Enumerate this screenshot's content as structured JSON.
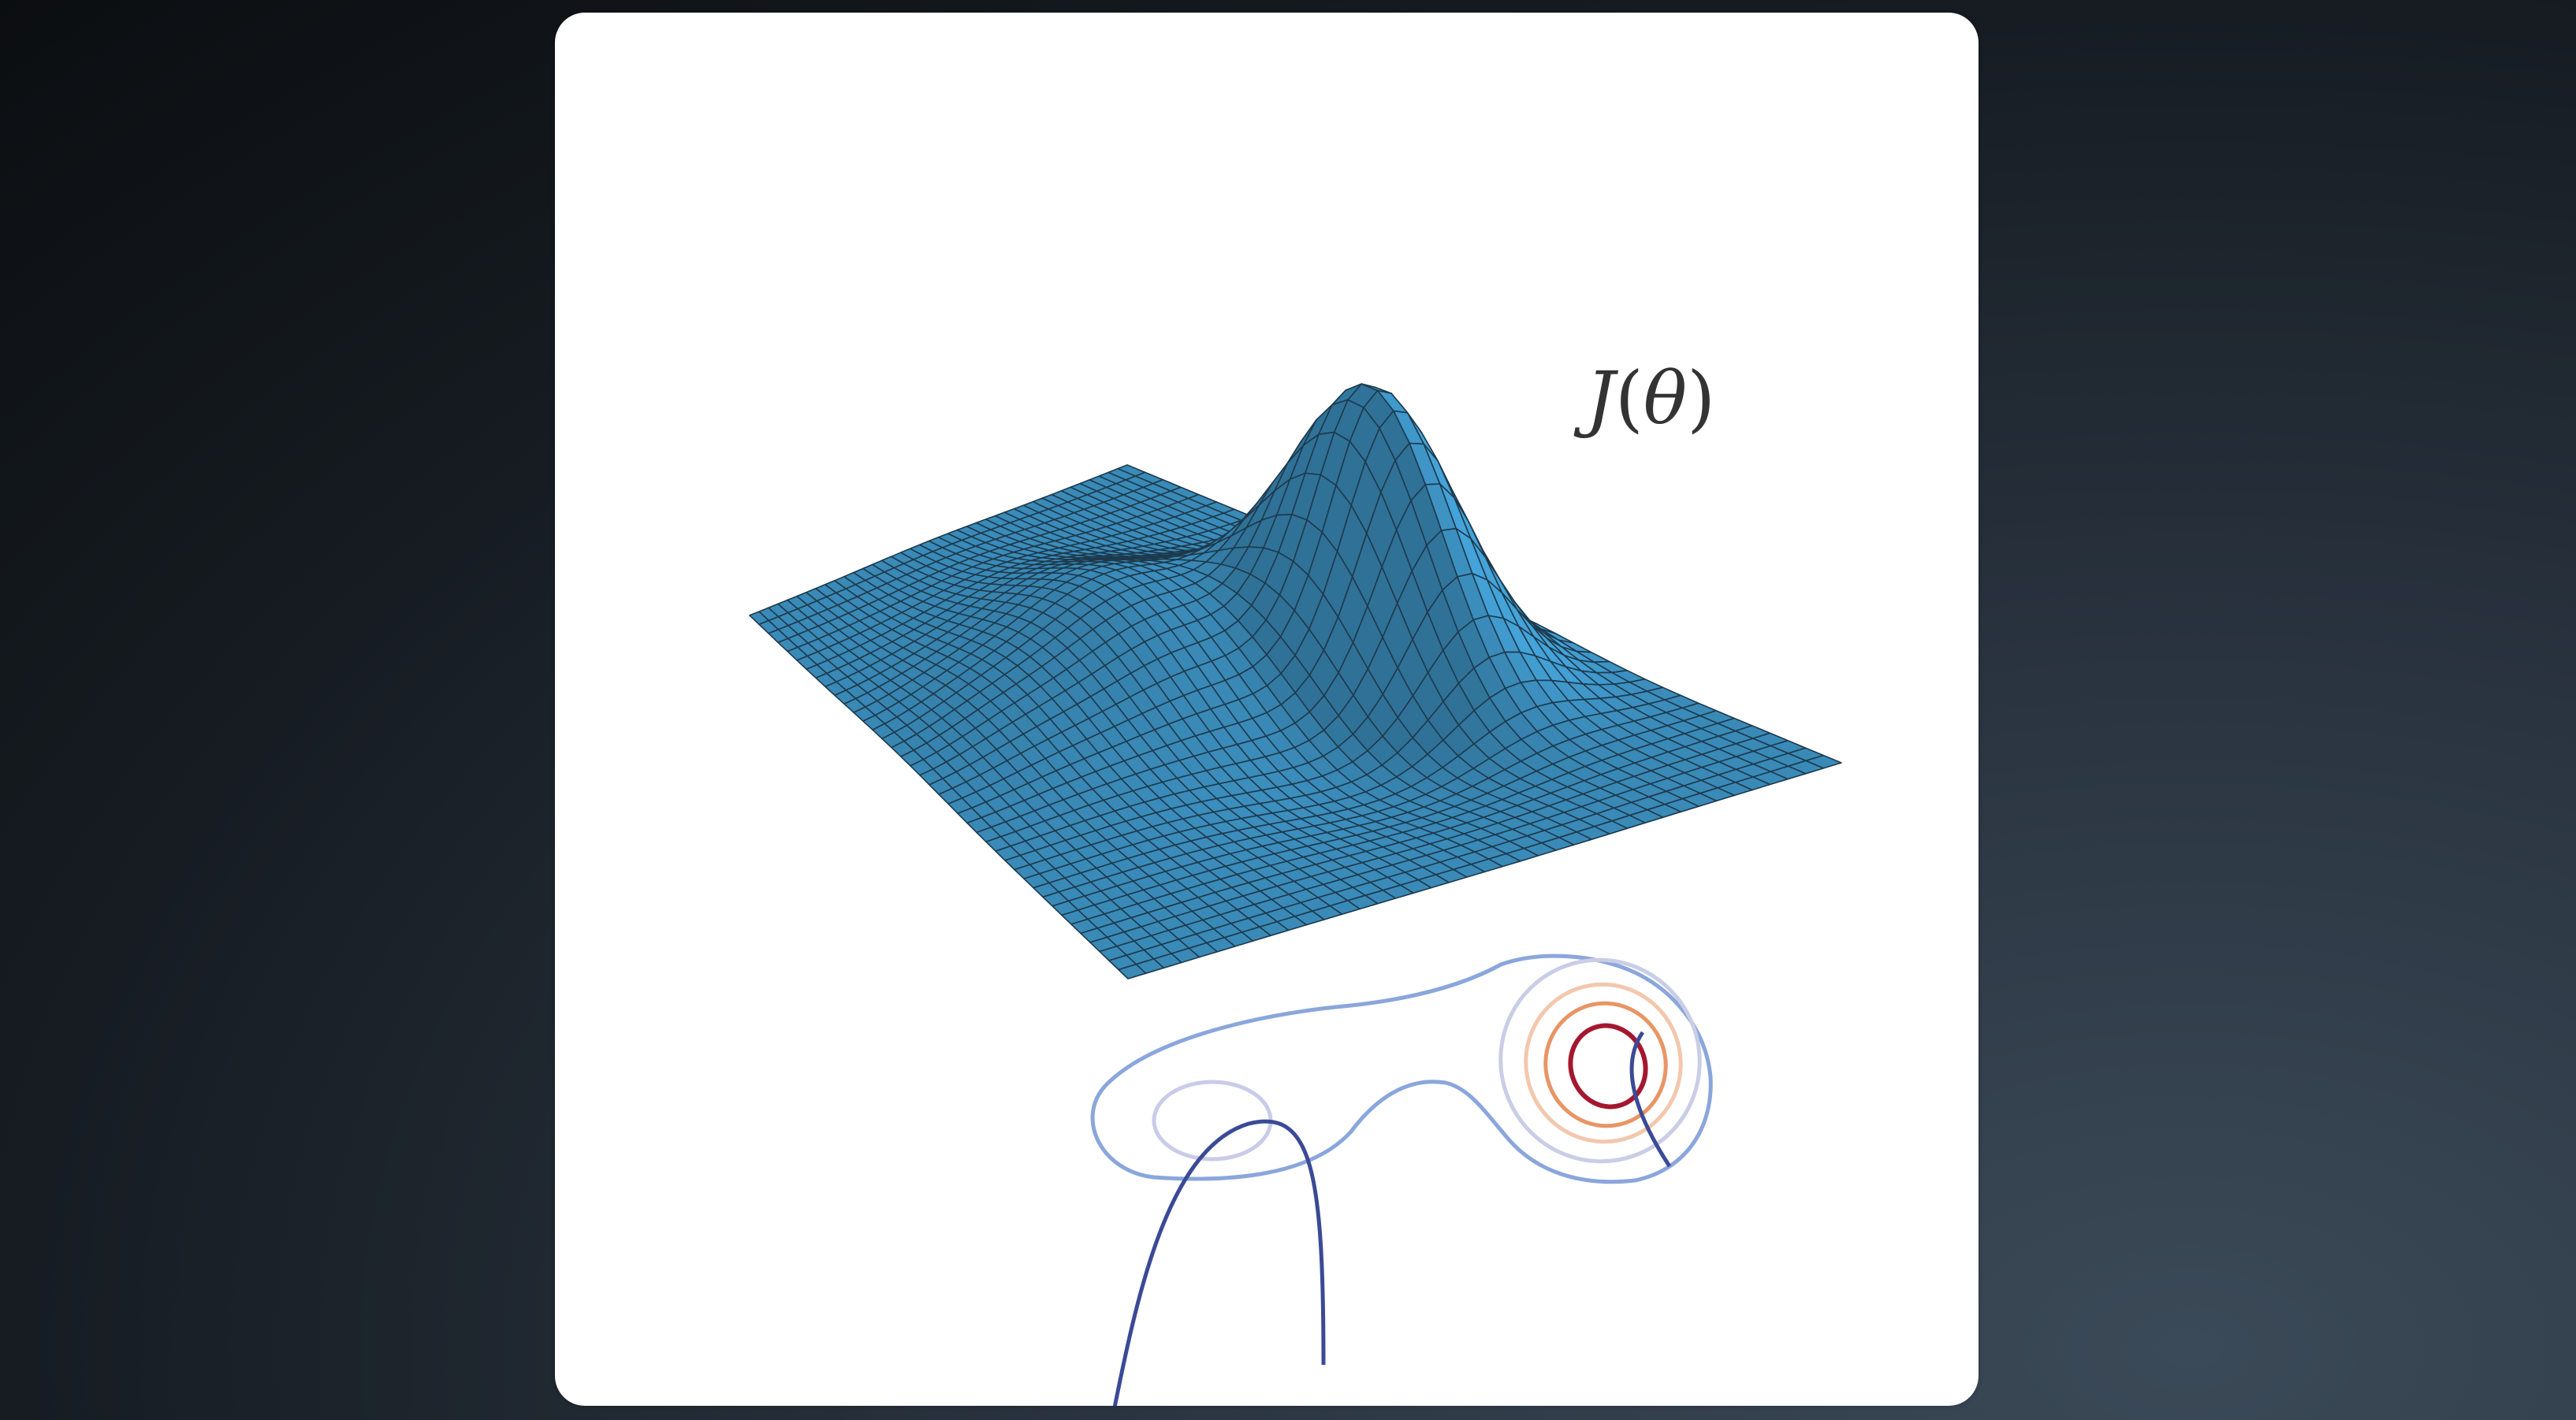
{
  "surface_label": {
    "func": "J",
    "open": "(",
    "var": "θ",
    "close": ")"
  },
  "colors": {
    "background_dark": "#0b0e11",
    "card": "#ffffff",
    "surface_fill": "#3a8ab8",
    "surface_grid": "#1d3a4d",
    "contour_outer": "#7f9fd8",
    "contour_light": "#c6cde8",
    "contour_dark": "#3c4c96",
    "contour_peak": "#a81e32",
    "contour_warm": "#e58a5c"
  },
  "icons": [
    "surface-plot",
    "contour-plot"
  ]
}
